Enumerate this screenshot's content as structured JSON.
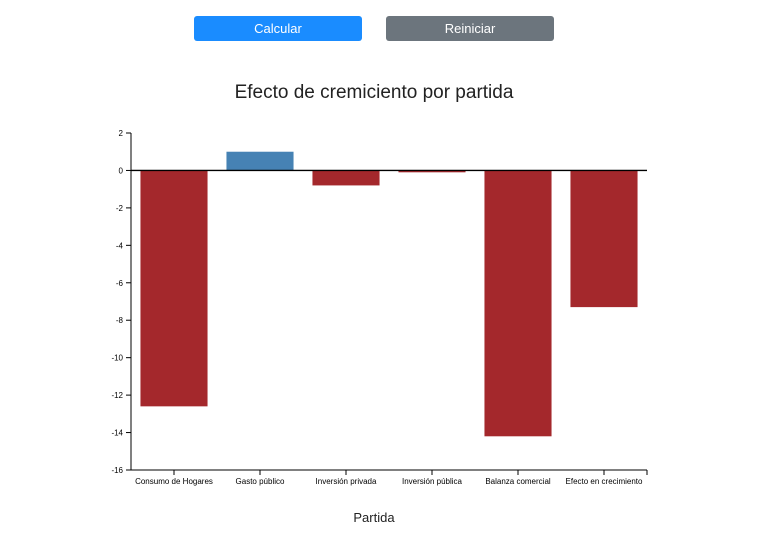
{
  "buttons": {
    "calculate_label": "Calcular",
    "calculate_color": "#1a8cff",
    "reset_label": "Reiniciar",
    "reset_color": "#6c757d"
  },
  "chart_data": {
    "type": "bar",
    "title": "Efecto de cremiciento por partida",
    "xlabel": "Partida",
    "ylabel": "",
    "categories": [
      "Consumo de Hogares",
      "Gasto público",
      "Inversión privada",
      "Inversión pública",
      "Balanza comercial",
      "Efecto en crecimiento"
    ],
    "values": [
      -12.6,
      1.0,
      -0.8,
      -0.1,
      -14.2,
      -7.3
    ],
    "ylim": [
      -16,
      2
    ],
    "yticks": [
      2,
      0,
      -2,
      -4,
      -6,
      -8,
      -10,
      -12,
      -14,
      -16
    ],
    "positive_color": "#4682b4",
    "negative_color": "#a4282c",
    "grid": false,
    "legend": "none"
  }
}
